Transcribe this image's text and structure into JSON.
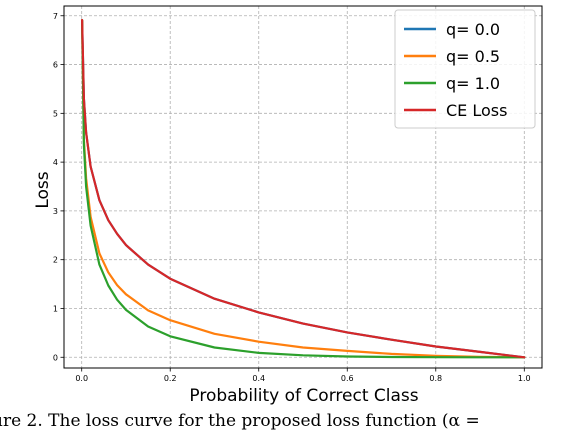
{
  "chart_data": {
    "type": "line",
    "title": "",
    "xlabel": "Probability of Correct Class",
    "ylabel": "Loss",
    "xlim": [
      -0.04,
      1.04
    ],
    "ylim": [
      -0.22,
      7.2
    ],
    "xticks": [
      0.0,
      0.2,
      0.4,
      0.6,
      0.8,
      1.0
    ],
    "xtick_labels": [
      "0.0",
      "0.2",
      "0.4",
      "0.6",
      "0.8",
      "1.0"
    ],
    "yticks": [
      0,
      1,
      2,
      3,
      4,
      5,
      6,
      7
    ],
    "ytick_labels": [
      "0",
      "1",
      "2",
      "3",
      "4",
      "5",
      "6",
      "7"
    ],
    "grid": true,
    "legend_position": "top-right",
    "series": [
      {
        "name": "q= 0.0",
        "color": "#1f77b4",
        "x": [
          0.001,
          0.005,
          0.01,
          0.02,
          0.04,
          0.06,
          0.08,
          0.1,
          0.15,
          0.2,
          0.3,
          0.4,
          0.5,
          0.6,
          0.7,
          0.8,
          0.9,
          1.0
        ],
        "y": [
          6.91,
          5.3,
          4.61,
          3.91,
          3.22,
          2.81,
          2.53,
          2.3,
          1.9,
          1.61,
          1.2,
          0.92,
          0.69,
          0.51,
          0.36,
          0.22,
          0.11,
          0.0
        ]
      },
      {
        "name": "q= 0.5",
        "color": "#ff7f0e",
        "x": [
          0.001,
          0.005,
          0.01,
          0.02,
          0.04,
          0.06,
          0.08,
          0.1,
          0.15,
          0.2,
          0.3,
          0.4,
          0.5,
          0.6,
          0.7,
          0.8,
          0.9,
          1.0
        ],
        "y": [
          6.91,
          4.47,
          3.67,
          2.88,
          2.13,
          1.74,
          1.48,
          1.29,
          0.96,
          0.76,
          0.48,
          0.32,
          0.2,
          0.13,
          0.07,
          0.03,
          0.01,
          0.0
        ]
      },
      {
        "name": "q= 1.0",
        "color": "#2ca02c",
        "x": [
          0.001,
          0.005,
          0.01,
          0.02,
          0.04,
          0.06,
          0.08,
          0.1,
          0.15,
          0.2,
          0.3,
          0.4,
          0.5,
          0.6,
          0.7,
          0.8,
          0.9,
          1.0
        ],
        "y": [
          6.9,
          4.35,
          3.5,
          2.7,
          1.9,
          1.47,
          1.18,
          0.97,
          0.63,
          0.43,
          0.2,
          0.09,
          0.04,
          0.015,
          0.005,
          0.001,
          0.0,
          0.0
        ]
      },
      {
        "name": "CE Loss",
        "color": "#d62728",
        "x": [
          0.001,
          0.005,
          0.01,
          0.02,
          0.04,
          0.06,
          0.08,
          0.1,
          0.15,
          0.2,
          0.3,
          0.4,
          0.5,
          0.6,
          0.7,
          0.8,
          0.9,
          1.0
        ],
        "y": [
          6.91,
          5.3,
          4.61,
          3.91,
          3.22,
          2.81,
          2.53,
          2.3,
          1.9,
          1.61,
          1.2,
          0.92,
          0.69,
          0.51,
          0.36,
          0.22,
          0.11,
          0.0
        ]
      }
    ]
  },
  "caption": "ure 2. The loss curve for the proposed loss function (α ="
}
